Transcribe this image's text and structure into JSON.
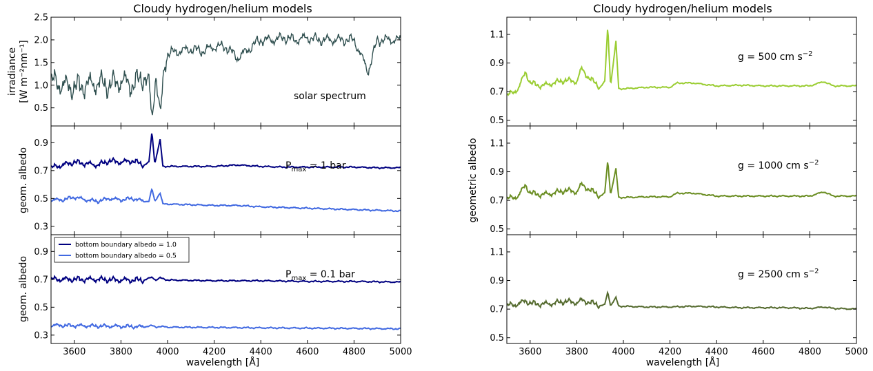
{
  "chart_data": [
    {
      "type": "line",
      "panel": "left-top",
      "title": "Cloudy hydrogen/helium models",
      "ylabel_lines": [
        "irradiance",
        "[W m⁻²nm⁻¹]"
      ],
      "xlim": [
        3500,
        5000
      ],
      "ylim": [
        0.1,
        2.5
      ],
      "yticks": [
        0.5,
        1.0,
        1.5,
        2.0,
        2.5
      ],
      "ytick_labels": [
        "0.5",
        "1.0",
        "1.5",
        "2.0",
        "2.5"
      ],
      "annotation": "solar spectrum",
      "series": [
        {
          "color": "#2f4f4f",
          "x": [
            3500,
            3550,
            3600,
            3650,
            3700,
            3750,
            3800,
            3850,
            3900,
            3920,
            3933,
            3950,
            3968,
            3990,
            4000,
            4050,
            4100,
            4150,
            4200,
            4250,
            4300,
            4350,
            4383,
            4400,
            4450,
            4500,
            4550,
            4600,
            4650,
            4700,
            4750,
            4800,
            4861,
            4900,
            4950,
            5000
          ],
          "y": [
            1.1,
            1.0,
            0.95,
            1.0,
            1.05,
            1.0,
            1.1,
            1.0,
            1.2,
            1.0,
            0.25,
            1.3,
            0.25,
            1.6,
            1.7,
            1.75,
            1.8,
            1.75,
            1.85,
            1.85,
            1.6,
            1.8,
            1.95,
            2.0,
            2.0,
            2.05,
            2.0,
            2.05,
            2.0,
            2.0,
            2.0,
            2.0,
            1.3,
            2.0,
            2.0,
            2.0
          ]
        }
      ]
    },
    {
      "type": "line",
      "panel": "left-middle",
      "ylabel": "geom. albedo",
      "xlim": [
        3500,
        5000
      ],
      "ylim": [
        0.24,
        1.02
      ],
      "yticks": [
        0.3,
        0.5,
        0.7,
        0.9
      ],
      "ytick_labels": [
        "0.3",
        "0.5",
        "0.7",
        "0.9"
      ],
      "annotation": {
        "text": "P",
        "sub": "max",
        "rest": " = 1 bar"
      },
      "series": [
        {
          "color": "#000080",
          "x": [
            3500,
            3550,
            3600,
            3650,
            3700,
            3750,
            3800,
            3850,
            3900,
            3920,
            3933,
            3945,
            3968,
            3980,
            4000,
            4100,
            4200,
            4300,
            4400,
            4500,
            4600,
            4700,
            4800,
            4900,
            5000
          ],
          "y": [
            0.72,
            0.74,
            0.76,
            0.75,
            0.74,
            0.77,
            0.76,
            0.77,
            0.74,
            0.76,
            0.98,
            0.75,
            0.92,
            0.73,
            0.73,
            0.73,
            0.73,
            0.74,
            0.73,
            0.725,
            0.725,
            0.725,
            0.725,
            0.72,
            0.72
          ]
        },
        {
          "color": "#4169e1",
          "x": [
            3500,
            3550,
            3600,
            3650,
            3700,
            3750,
            3800,
            3850,
            3900,
            3920,
            3933,
            3945,
            3968,
            3980,
            4000,
            4100,
            4200,
            4300,
            4400,
            4500,
            4600,
            4700,
            4800,
            4900,
            5000
          ],
          "y": [
            0.49,
            0.49,
            0.51,
            0.49,
            0.48,
            0.5,
            0.49,
            0.5,
            0.48,
            0.48,
            0.57,
            0.48,
            0.54,
            0.46,
            0.46,
            0.455,
            0.45,
            0.45,
            0.44,
            0.435,
            0.43,
            0.425,
            0.42,
            0.415,
            0.41
          ]
        }
      ]
    },
    {
      "type": "line",
      "panel": "left-bottom",
      "ylabel": "geom. albedo",
      "xlabel": "wavelength [Å]",
      "xlim": [
        3500,
        5000
      ],
      "xticks": [
        3600,
        3800,
        4000,
        4200,
        4400,
        4600,
        4800,
        5000
      ],
      "xtick_labels": [
        "3600",
        "3800",
        "4000",
        "4200",
        "4400",
        "4600",
        "4800",
        "5000"
      ],
      "ylim": [
        0.24,
        1.02
      ],
      "yticks": [
        0.3,
        0.5,
        0.7,
        0.9
      ],
      "ytick_labels": [
        "0.3",
        "0.5",
        "0.7",
        "0.9"
      ],
      "annotation": {
        "text": "P",
        "sub": "max",
        "rest": " = 0.1 bar"
      },
      "legend": [
        "bottom boundary albedo = 1.0",
        "bottom boundary albedo = 0.5"
      ],
      "legend_position": "upper-left",
      "series": [
        {
          "name": "bottom boundary albedo = 1.0",
          "color": "#000080",
          "x": [
            3500,
            3600,
            3700,
            3800,
            3900,
            3933,
            3950,
            3968,
            4000,
            4200,
            4400,
            4600,
            4800,
            5000
          ],
          "y": [
            0.7,
            0.7,
            0.7,
            0.695,
            0.695,
            0.715,
            0.695,
            0.71,
            0.695,
            0.69,
            0.69,
            0.685,
            0.685,
            0.68
          ]
        },
        {
          "name": "bottom boundary albedo = 0.5",
          "color": "#4169e1",
          "x": [
            3500,
            3600,
            3700,
            3800,
            3900,
            3933,
            3950,
            3968,
            4000,
            4200,
            4400,
            4600,
            4800,
            5000
          ],
          "y": [
            0.37,
            0.368,
            0.365,
            0.363,
            0.36,
            0.368,
            0.358,
            0.362,
            0.357,
            0.355,
            0.352,
            0.35,
            0.348,
            0.345
          ]
        }
      ]
    },
    {
      "type": "line",
      "panel": "right-top",
      "title": "Cloudy hydrogen/helium models",
      "xlim": [
        3500,
        5000
      ],
      "ylim": [
        0.46,
        1.22
      ],
      "yticks": [
        0.5,
        0.7,
        0.9,
        1.1
      ],
      "ytick_labels": [
        "0.5",
        "0.7",
        "0.9",
        "1.1"
      ],
      "annotation": {
        "text": "g = 500 cm s",
        "sup": "−2"
      },
      "series": [
        {
          "color": "#9acd32",
          "x": [
            3500,
            3550,
            3580,
            3600,
            3650,
            3700,
            3750,
            3800,
            3820,
            3850,
            3900,
            3920,
            3933,
            3945,
            3968,
            3980,
            4000,
            4100,
            4200,
            4230,
            4300,
            4400,
            4500,
            4600,
            4700,
            4800,
            4860,
            4900,
            5000
          ],
          "y": [
            0.67,
            0.72,
            0.84,
            0.76,
            0.74,
            0.76,
            0.78,
            0.77,
            0.86,
            0.8,
            0.73,
            0.77,
            1.16,
            0.74,
            1.05,
            0.72,
            0.72,
            0.73,
            0.73,
            0.76,
            0.76,
            0.74,
            0.745,
            0.74,
            0.74,
            0.74,
            0.77,
            0.74,
            0.74
          ]
        }
      ]
    },
    {
      "type": "line",
      "panel": "right-middle",
      "ylabel": "geometric albedo",
      "xlim": [
        3500,
        5000
      ],
      "ylim": [
        0.46,
        1.22
      ],
      "yticks": [
        0.5,
        0.7,
        0.9,
        1.1
      ],
      "ytick_labels": [
        "0.5",
        "0.7",
        "0.9",
        "1.1"
      ],
      "annotation": {
        "text": "g = 1000 cm s",
        "sup": "−2"
      },
      "series": [
        {
          "color": "#6b8e23",
          "x": [
            3500,
            3550,
            3580,
            3600,
            3650,
            3700,
            3750,
            3800,
            3820,
            3850,
            3900,
            3920,
            3933,
            3945,
            3968,
            3980,
            4000,
            4100,
            4200,
            4230,
            4300,
            4400,
            4500,
            4600,
            4700,
            4800,
            4860,
            4900,
            5000
          ],
          "y": [
            0.71,
            0.73,
            0.81,
            0.75,
            0.74,
            0.75,
            0.77,
            0.76,
            0.81,
            0.78,
            0.73,
            0.75,
            0.98,
            0.74,
            0.92,
            0.72,
            0.72,
            0.725,
            0.725,
            0.75,
            0.75,
            0.73,
            0.73,
            0.73,
            0.73,
            0.73,
            0.76,
            0.73,
            0.73
          ]
        }
      ]
    },
    {
      "type": "line",
      "panel": "right-bottom",
      "xlabel": "wavelength [Å]",
      "xlim": [
        3500,
        5000
      ],
      "xticks": [
        3600,
        3800,
        4000,
        4200,
        4400,
        4600,
        4800,
        5000
      ],
      "xtick_labels": [
        "3600",
        "3800",
        "4000",
        "4200",
        "4400",
        "4600",
        "4800",
        "5000"
      ],
      "ylim": [
        0.46,
        1.22
      ],
      "yticks": [
        0.5,
        0.7,
        0.9,
        1.1
      ],
      "ytick_labels": [
        "0.5",
        "0.7",
        "0.9",
        "1.1"
      ],
      "annotation": {
        "text": "g = 2500 cm s",
        "sup": "−2"
      },
      "series": [
        {
          "color": "#556b2f",
          "x": [
            3500,
            3550,
            3580,
            3600,
            3650,
            3700,
            3750,
            3800,
            3820,
            3850,
            3900,
            3920,
            3933,
            3945,
            3968,
            3980,
            4000,
            4100,
            4200,
            4300,
            4400,
            4500,
            4600,
            4700,
            4800,
            4860,
            4900,
            5000
          ],
          "y": [
            0.725,
            0.735,
            0.76,
            0.74,
            0.735,
            0.74,
            0.755,
            0.745,
            0.76,
            0.75,
            0.725,
            0.73,
            0.82,
            0.725,
            0.78,
            0.72,
            0.72,
            0.715,
            0.715,
            0.72,
            0.715,
            0.71,
            0.71,
            0.71,
            0.705,
            0.715,
            0.705,
            0.7
          ]
        }
      ]
    }
  ]
}
